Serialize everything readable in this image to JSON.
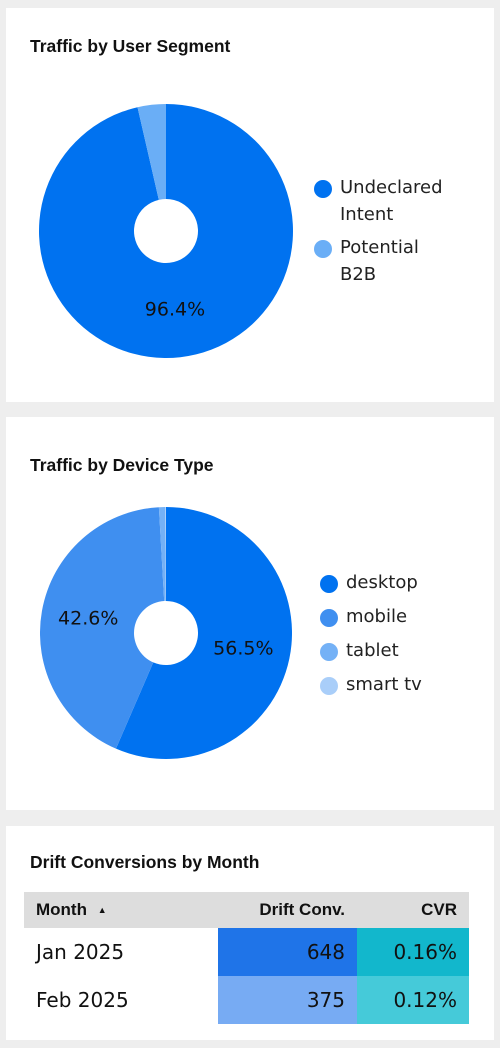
{
  "chart_data": [
    {
      "type": "donut",
      "title": "Traffic by User Segment",
      "categories": [
        "Undeclared Intent",
        "Potential B2B"
      ],
      "values": [
        96.4,
        3.6
      ],
      "value_labels": [
        "96.4%",
        null
      ],
      "colors": [
        "#0072f0",
        "#6aaef6"
      ]
    },
    {
      "type": "donut",
      "title": "Traffic by Device Type",
      "categories": [
        "desktop",
        "mobile",
        "tablet",
        "smart tv"
      ],
      "values": [
        56.5,
        42.6,
        0.8,
        0.1
      ],
      "value_labels": [
        "56.5%",
        "42.6%",
        null,
        null
      ],
      "colors": [
        "#0072f0",
        "#3f8ff0",
        "#74b1f6",
        "#a9cef9"
      ]
    }
  ],
  "table": {
    "title": "Drift Conversions by Month",
    "columns": [
      "Month",
      "Drift Conv.",
      "CVR"
    ],
    "rows": [
      [
        "Jan 2025",
        "648",
        "0.16%"
      ],
      [
        "Feb 2025",
        "375",
        "0.12%"
      ]
    ]
  }
}
